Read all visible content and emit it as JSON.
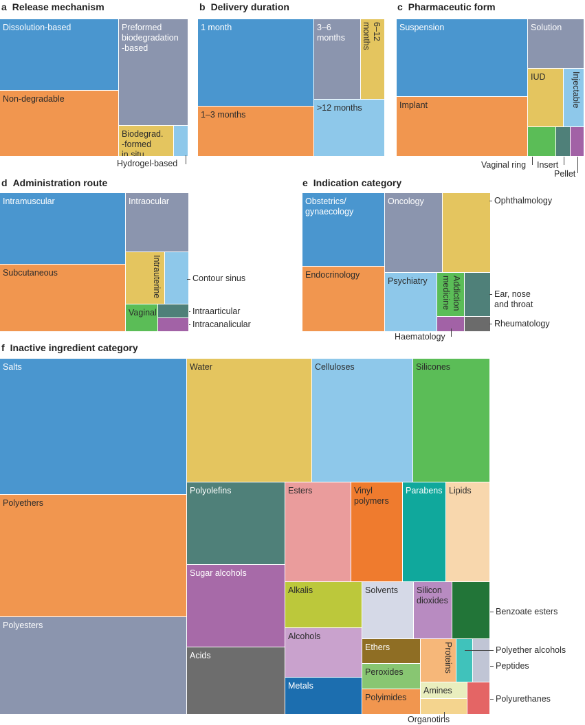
{
  "colors": {
    "blue": "#4a96cf",
    "orange": "#f1964f",
    "grayblue": "#8b95ae",
    "yellow": "#e4c55f",
    "lightblue": "#8ec8ea",
    "green": "#5bbd57",
    "teal": "#4f8079",
    "purple": "#a262a6",
    "grey": "#6b6b6b",
    "sugar": "#a76aa8",
    "acids": "#6d6d6d",
    "pink": "#ea9c9c",
    "vinyl": "#ef7b2e",
    "parabens": "#10a89c",
    "lipids": "#f8d7ad",
    "alkalis": "#bcc83b",
    "solvents": "#d5d9e7",
    "silicondiox": "#b88bc1",
    "benzoate": "#227538",
    "alcohols": "#c9a2cd",
    "ethers": "#8f6e24",
    "proteins": "#f6b779",
    "polyetheralc": "#40c2bb",
    "peptides": "#c0c5d5",
    "peroxides": "#88c672",
    "amines": "#e9eebe",
    "metals": "#1c6eaf",
    "polyimides": "#f1964f",
    "organotins": "#f4d48e",
    "polyurethanes": "#e46565"
  },
  "chart_data": [
    {
      "type": "treemap",
      "panel": "a",
      "title": "Release mechanism",
      "items": [
        "Dissolution-based",
        "Preformed\nbiodegradation\n-based",
        "Non-degradable",
        "Biodegrad.\n-formed\nin situ",
        "Hydrogel-based"
      ]
    },
    {
      "type": "treemap",
      "panel": "b",
      "title": "Delivery duration",
      "items": [
        "1 month",
        "3–6\nmonths",
        "6–12\nmonths",
        "1–3 months",
        ">12 months"
      ]
    },
    {
      "type": "treemap",
      "panel": "c",
      "title": "Pharmaceutic form",
      "items": [
        "Suspension",
        "Solution",
        "IUD",
        "Injectable",
        "Implant",
        "Vaginal ring",
        "Insert",
        "Pellet"
      ]
    },
    {
      "type": "treemap",
      "panel": "d",
      "title": "Administration route",
      "items": [
        "Intramuscular",
        "Intraocular",
        "Subcutaneous",
        "Intrauterine",
        "Contour sinus",
        "Vaginal",
        "Intraarticular",
        "Intracanalicular"
      ]
    },
    {
      "type": "treemap",
      "panel": "e",
      "title": "Indication category",
      "items": [
        "Obstetrics/\ngynaecology",
        "Oncology",
        "Ophthalmology",
        "Endocrinology",
        "Psychiatry",
        "Addiction\nmedicine",
        "Ear, nose\nand throat",
        "Haematology",
        "Rheumatology"
      ]
    },
    {
      "type": "treemap",
      "panel": "f",
      "title": "Inactive ingredient category",
      "items": [
        "Salts",
        "Water",
        "Celluloses",
        "Silicones",
        "Polyethers",
        "Polyolefins",
        "Esters",
        "Vinyl\npolymers",
        "Parabens",
        "Lipids",
        "Sugar alcohols",
        "Alkalis",
        "Solvents",
        "Silicon\ndioxides",
        "Benzoate esters",
        "Polyesters",
        "Acids",
        "Alcohols",
        "Ethers",
        "Proteins",
        "Polyether alcohols",
        "Peptides",
        "Peroxides",
        "Amines",
        "Metals",
        "Polyimides",
        "Organotins",
        "Polyurethanes"
      ]
    }
  ]
}
